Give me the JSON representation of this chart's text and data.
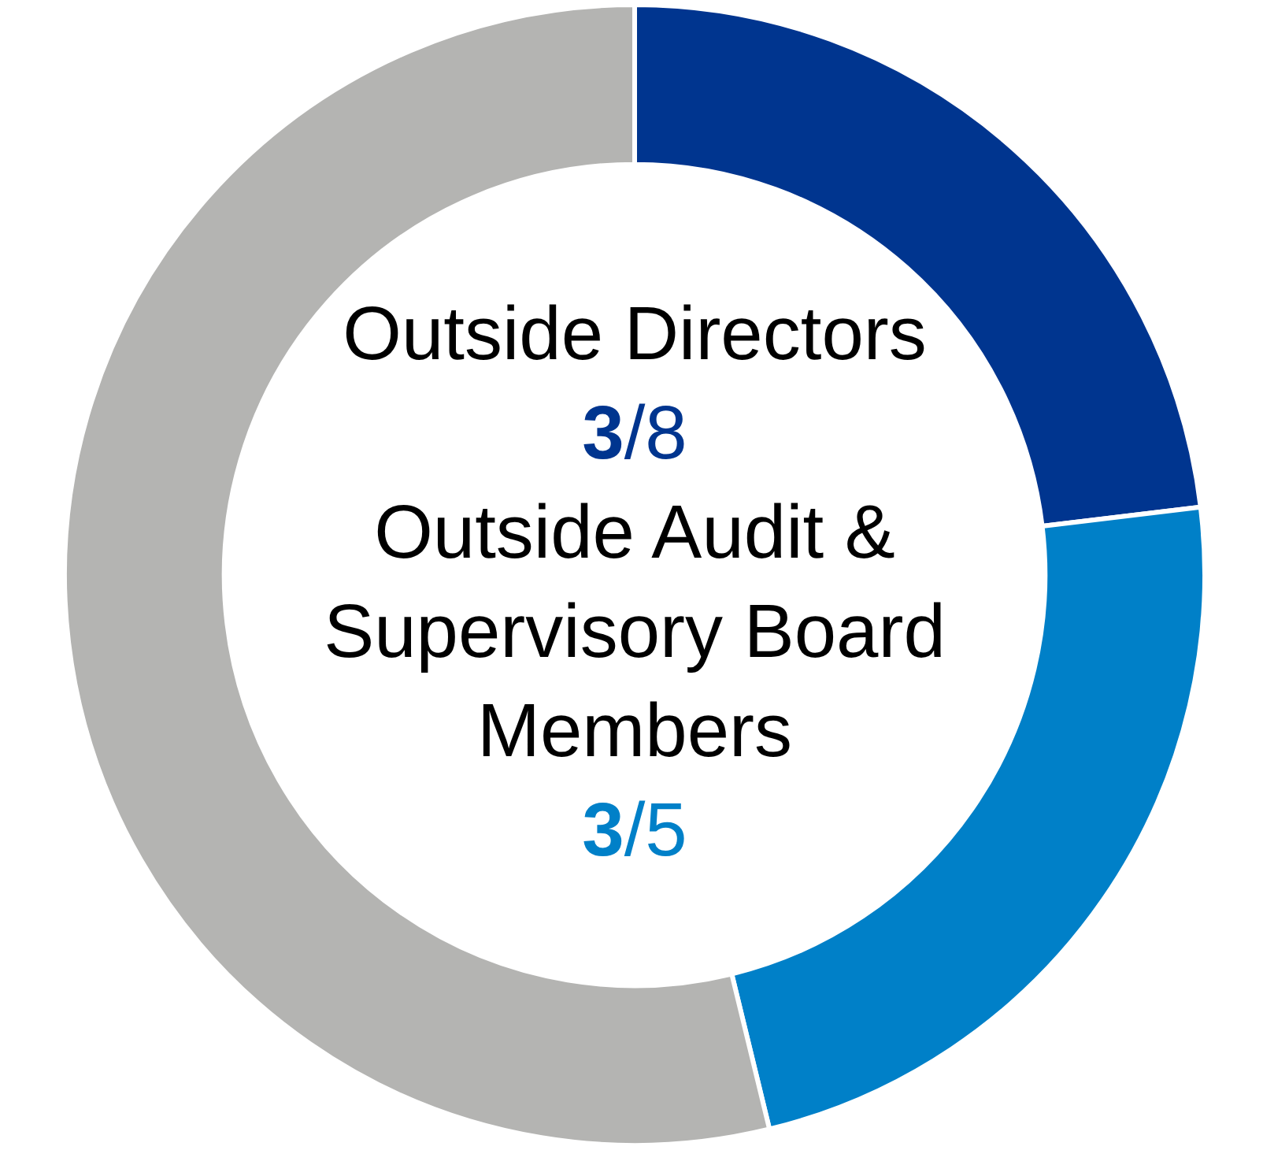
{
  "chart_data": {
    "type": "donut",
    "categories": [
      null,
      null,
      null
    ],
    "values": [
      23.1,
      23.1,
      53.8
    ],
    "colors": [
      "#00358f",
      "#0080c8",
      "#b4b4b2"
    ],
    "annotations": [
      "Outside Directors",
      "3/8",
      "Outside Audit & Supervisory Board Members",
      "3/5"
    ]
  }
}
